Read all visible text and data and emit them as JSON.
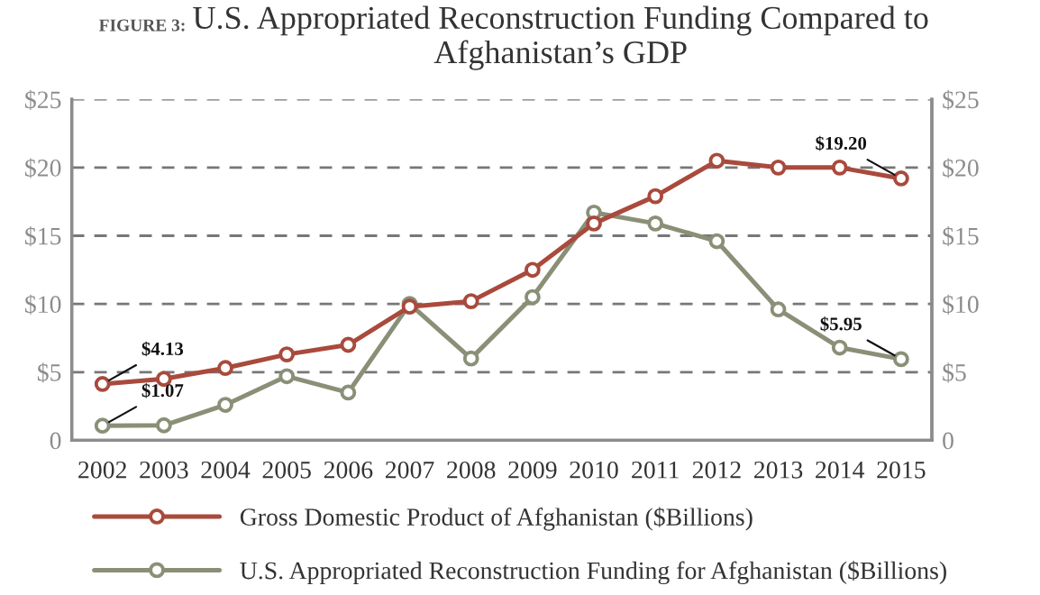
{
  "chart_data": {
    "type": "line",
    "title": "U.S. Appropriated Reconstruction Funding Compared to Afghanistan’s GDP",
    "categories": [
      "2002",
      "2003",
      "2004",
      "2005",
      "2006",
      "2007",
      "2008",
      "2009",
      "2010",
      "2011",
      "2012",
      "2013",
      "2014",
      "2015"
    ],
    "series": [
      {
        "name": "Gross Domestic Product of Afghanistan ($Billions)",
        "color": "#a94a3c",
        "values": [
          4.13,
          4.5,
          5.3,
          6.3,
          7.0,
          9.8,
          10.2,
          12.5,
          15.9,
          17.9,
          20.5,
          20.0,
          20.0,
          19.2
        ]
      },
      {
        "name": "U.S. Appropriated Reconstruction Funding for Afghanistan ($Billions)",
        "color": "#8a9077",
        "values": [
          1.07,
          1.1,
          2.6,
          4.7,
          3.5,
          10.0,
          6.0,
          10.5,
          16.7,
          15.9,
          14.6,
          9.6,
          6.8,
          5.95
        ]
      }
    ],
    "ylim": [
      0,
      25
    ],
    "yticks": [
      {
        "value": 0,
        "label": "0"
      },
      {
        "value": 5,
        "label": "$5"
      },
      {
        "value": 10,
        "label": "$10"
      },
      {
        "value": 15,
        "label": "$15"
      },
      {
        "value": 20,
        "label": "$20"
      },
      {
        "value": 25,
        "label": "$25"
      }
    ],
    "y2lim": [
      0,
      25
    ],
    "y2ticks": [
      {
        "value": 0,
        "label": "0"
      },
      {
        "value": 5,
        "label": "$5"
      },
      {
        "value": 10,
        "label": "$10"
      },
      {
        "value": 15,
        "label": "$15"
      },
      {
        "value": 20,
        "label": "$20"
      },
      {
        "value": 25,
        "label": "$25"
      }
    ],
    "annotations": [
      "FIGURE 3:",
      {
        "text": "$4.13",
        "x": "2002",
        "y": 4.13
      },
      {
        "text": "$1.07",
        "x": "2002",
        "y": 1.07
      },
      {
        "text": "$19.20",
        "x": "2015",
        "y": 19.2
      },
      {
        "text": "$5.95",
        "x": "2015",
        "y": 5.95
      }
    ],
    "grid": "y",
    "line_style": "solid",
    "marker": "circle",
    "legend": "bottom"
  }
}
